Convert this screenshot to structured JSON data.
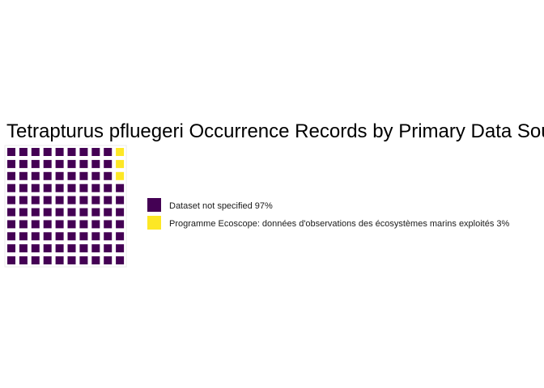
{
  "chart_data": {
    "type": "waffle",
    "title": "Tetrapturus pfluegeri Occurrence Records by Primary Data Source",
    "grid": {
      "rows": 10,
      "columns": 10,
      "total_cells": 100
    },
    "categories": [
      "Dataset not specified",
      "Programme Ecoscope: données d'observations des écosystèmes marins exploités"
    ],
    "values": [
      97,
      3
    ],
    "legend": {
      "position": "right",
      "entries": [
        {
          "label": "Dataset not specified 97%",
          "color": "#440154"
        },
        {
          "label": "Programme Ecoscope: données d'observations des écosystèmes marins exploités 3%",
          "color": "#FDE725"
        }
      ]
    },
    "colors": [
      "#440154",
      "#FDE725"
    ]
  }
}
